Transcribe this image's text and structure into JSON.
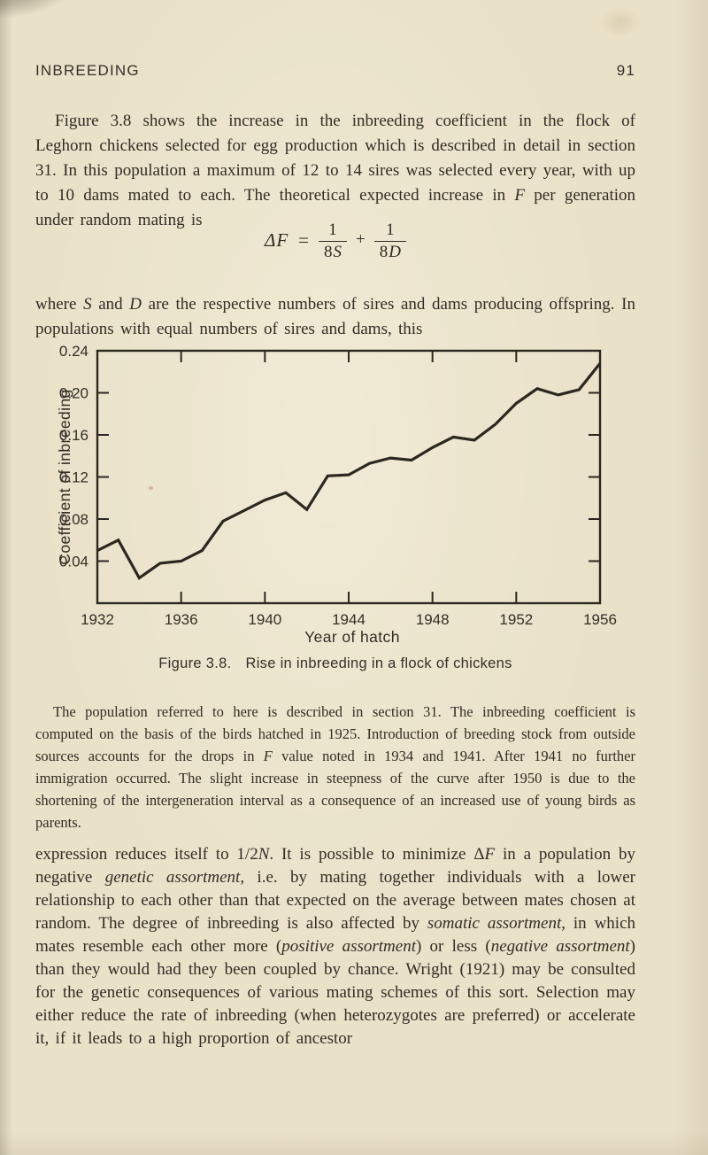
{
  "page": {
    "header": {
      "title": "INBREEDING",
      "page_number": "91"
    },
    "paragraph1": [
      {
        "t": "Figure 3.8 shows the increase in the inbreeding coefficient in the flock of Leghorn chickens selected for egg production which is described in detail in section 31.  In this population a maximum of 12 to 14 sires was selected every year, with up to 10 dams mated to each.  The theoretical expected increase in "
      },
      {
        "t": "F",
        "i": true
      },
      {
        "t": " per generation under random mating is"
      }
    ],
    "formula": {
      "lhs": "ΔF",
      "equals": "=",
      "frac1_num": "1",
      "frac1_den_coef": "8",
      "frac1_den_var": "S",
      "plus": "+",
      "frac2_num": "1",
      "frac2_den_coef": "8",
      "frac2_den_var": "D"
    },
    "paragraph2": [
      {
        "t": "where "
      },
      {
        "t": "S",
        "i": true
      },
      {
        "t": " and "
      },
      {
        "t": "D",
        "i": true
      },
      {
        "t": " are the respective numbers of sires and dams producing offspring.  In populations with equal numbers of sires and dams, this"
      }
    ],
    "figure_caption": {
      "label": "Figure 3.8.",
      "text": "Rise in inbreeding in a flock of chickens"
    },
    "figure_note": [
      {
        "t": "The population referred to here is described in section 31.  The inbreeding coefficient is computed on the basis of the birds hatched in 1925.  Introduction of breeding stock from outside sources accounts for the drops in "
      },
      {
        "t": "F",
        "i": true
      },
      {
        "t": " value noted in 1934 and 1941.  After 1941 no further immigration occurred.  The slight increase in steepness of the curve after 1950 is due to the shortening of the intergeneration interval as a consequence of an increased use of young birds as parents."
      }
    ],
    "paragraph3": [
      {
        "t": "expression reduces itself to 1/2"
      },
      {
        "t": "N",
        "i": true
      },
      {
        "t": ".  It is possible to minimize Δ"
      },
      {
        "t": "F",
        "i": true
      },
      {
        "t": " in a population by negative "
      },
      {
        "t": "genetic assortment",
        "i": true
      },
      {
        "t": ", i.e. by mating together individuals with a lower relationship to each other than that expected on the average between mates chosen at random.  The degree of inbreeding is also affected by "
      },
      {
        "t": "somatic assortment",
        "i": true
      },
      {
        "t": ", in which mates resemble each other more ("
      },
      {
        "t": "positive assortment",
        "i": true
      },
      {
        "t": ") or less ("
      },
      {
        "t": "negative assortment",
        "i": true
      },
      {
        "t": ") than they would had they been coupled by chance.  Wright (1921) may be consulted for the genetic consequences of various mating schemes of this sort.  Selection may either reduce the rate of inbreeding (when heterozygotes are preferred) or accelerate it, if it leads to a high proportion of ancestor"
      }
    ]
  },
  "chart_data": {
    "type": "line",
    "title": "",
    "xlabel": "Year of hatch",
    "ylabel": "Coefficient of inbreeding",
    "x": [
      1932,
      1933,
      1934,
      1935,
      1936,
      1937,
      1938,
      1939,
      1940,
      1941,
      1942,
      1943,
      1944,
      1945,
      1946,
      1947,
      1948,
      1949,
      1950,
      1951,
      1952,
      1953,
      1954,
      1955,
      1956
    ],
    "values": [
      0.05,
      0.06,
      0.024,
      0.038,
      0.04,
      0.05,
      0.078,
      0.088,
      0.098,
      0.105,
      0.089,
      0.121,
      0.122,
      0.133,
      0.138,
      0.136,
      0.148,
      0.158,
      0.155,
      0.17,
      0.19,
      0.204,
      0.198,
      0.203,
      0.228
    ],
    "xlim": [
      1932,
      1956
    ],
    "ylim": [
      0,
      0.24
    ],
    "xticks": [
      1932,
      1936,
      1940,
      1944,
      1948,
      1952,
      1956
    ],
    "yticks": [
      0.04,
      0.08,
      0.12,
      0.16,
      0.2,
      0.24
    ],
    "grid": false,
    "legend": null,
    "line_color": "#2b2721",
    "series_name": "inbreeding-coefficient"
  }
}
